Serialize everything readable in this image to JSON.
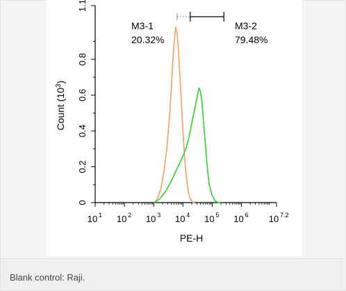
{
  "caption": "Blank control: Raji.",
  "chart_data": {
    "type": "line",
    "xlabel": "PE-H",
    "ylabel": "Count (10",
    "ylabel_exponent": "3",
    "ylabel_suffix": ")",
    "x_scale": "log",
    "xlim": [
      1,
      7.2
    ],
    "ylim": [
      0,
      1.1
    ],
    "x_ticks": [
      {
        "exp": 1,
        "base": "10",
        "sup": "1"
      },
      {
        "exp": 2,
        "base": "10",
        "sup": "2"
      },
      {
        "exp": 3,
        "base": "10",
        "sup": "3"
      },
      {
        "exp": 4,
        "base": "10",
        "sup": "4"
      },
      {
        "exp": 5,
        "base": "10",
        "sup": "5"
      },
      {
        "exp": 6,
        "base": "10",
        "sup": "6"
      },
      {
        "exp": 7.2,
        "base": "10",
        "sup": "7.2"
      }
    ],
    "y_ticks": [
      {
        "value": 0,
        "label": "0"
      },
      {
        "value": 0.2,
        "label": "0.2"
      },
      {
        "value": 0.4,
        "label": "0.4"
      },
      {
        "value": 0.6,
        "label": "0.6"
      },
      {
        "value": 0.8,
        "label": "0.8"
      },
      {
        "value": 1.1,
        "label": "1.1"
      }
    ],
    "grid": false,
    "series": [
      {
        "color": "#f0a060",
        "x_log10": [
          3.05,
          3.15,
          3.25,
          3.35,
          3.45,
          3.55,
          3.6,
          3.65,
          3.7,
          3.75,
          3.8,
          3.85,
          3.9,
          3.95,
          4.0,
          4.05,
          4.1,
          4.15,
          4.2,
          4.25,
          4.3,
          4.35,
          4.4
        ],
        "y": [
          0.0,
          0.03,
          0.08,
          0.17,
          0.3,
          0.5,
          0.63,
          0.78,
          0.9,
          0.98,
          0.95,
          0.84,
          0.7,
          0.55,
          0.4,
          0.27,
          0.17,
          0.1,
          0.05,
          0.02,
          0.01,
          0.0,
          0.0
        ]
      },
      {
        "color": "#33cc33",
        "x_log10": [
          3.0,
          3.2,
          3.4,
          3.6,
          3.8,
          4.0,
          4.1,
          4.2,
          4.3,
          4.4,
          4.5,
          4.55,
          4.6,
          4.65,
          4.7,
          4.75,
          4.8,
          4.85,
          4.9,
          5.0,
          5.1,
          5.2,
          5.3
        ],
        "y": [
          0.0,
          0.02,
          0.06,
          0.12,
          0.19,
          0.26,
          0.3,
          0.36,
          0.44,
          0.52,
          0.6,
          0.64,
          0.62,
          0.56,
          0.46,
          0.36,
          0.26,
          0.17,
          0.1,
          0.04,
          0.01,
          0.0,
          0.0
        ]
      }
    ],
    "gates": [
      {
        "name": "M3-1",
        "percent": "20.32%",
        "x_start_log10": 3.8,
        "x_end_log10": 4.25
      },
      {
        "name": "M3-2",
        "percent": "79.48%",
        "x_start_log10": 4.25,
        "x_end_log10": 5.4
      }
    ]
  }
}
